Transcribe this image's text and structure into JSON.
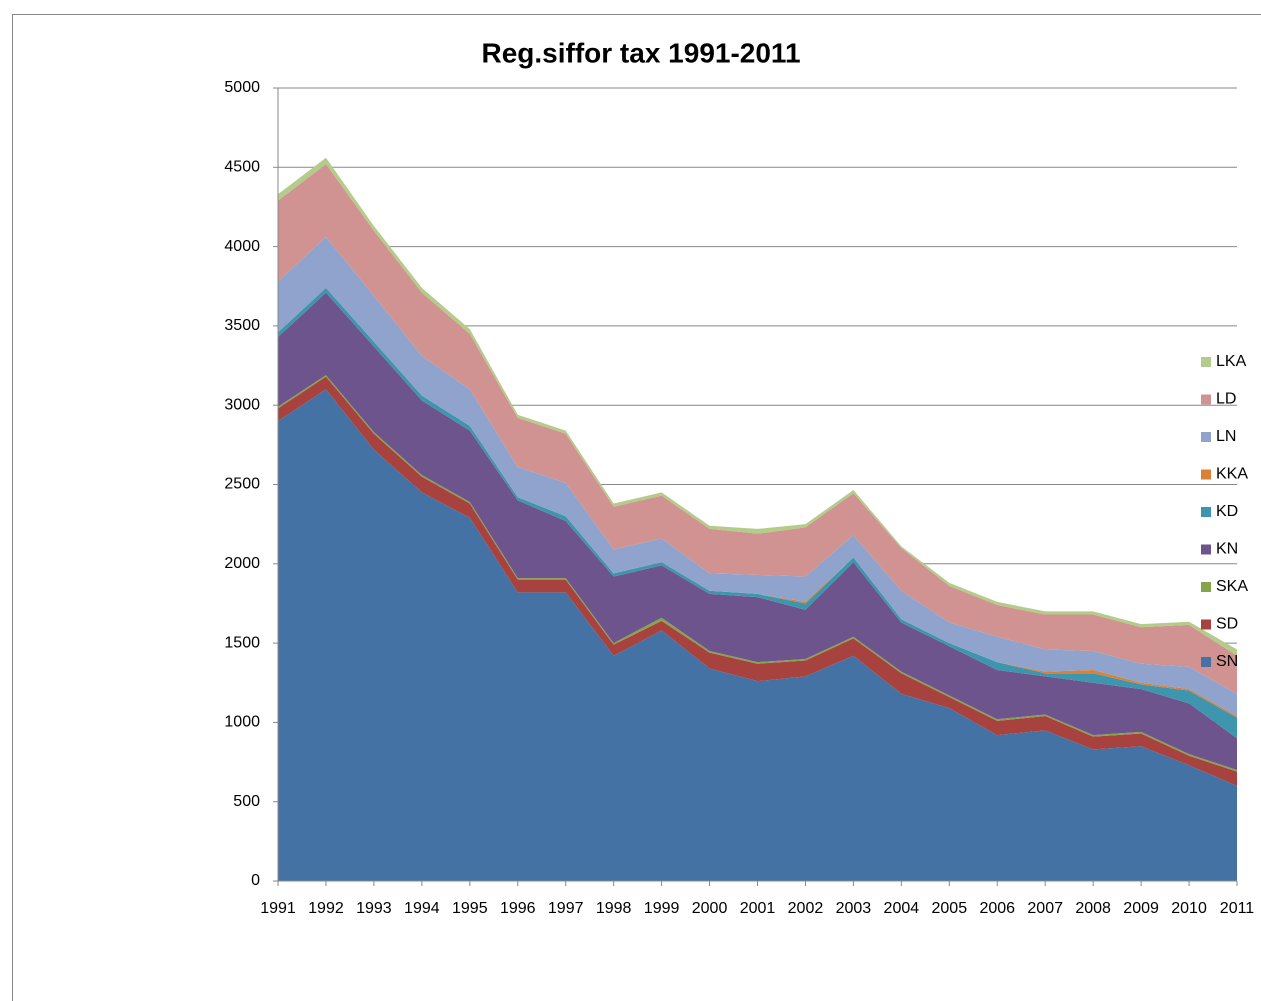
{
  "chart_data": {
    "type": "stacked_area",
    "title": "Reg.siffor tax 1991-2011",
    "categories": [
      "1991",
      "1992",
      "1993",
      "1994",
      "1995",
      "1996",
      "1997",
      "1998",
      "1999",
      "2000",
      "2001",
      "2002",
      "2003",
      "2004",
      "2005",
      "2006",
      "2007",
      "2008",
      "2009",
      "2010",
      "2011"
    ],
    "series": [
      {
        "name": "SN",
        "color": "#4472a4",
        "values": [
          2900,
          3100,
          2720,
          2450,
          2290,
          1820,
          1820,
          1420,
          1580,
          1340,
          1260,
          1290,
          1420,
          1180,
          1090,
          920,
          950,
          830,
          850,
          730,
          600
        ]
      },
      {
        "name": "SD",
        "color": "#a8423f",
        "values": [
          80,
          80,
          100,
          100,
          90,
          80,
          80,
          70,
          60,
          100,
          110,
          100,
          110,
          130,
          70,
          90,
          90,
          80,
          80,
          60,
          90
        ]
      },
      {
        "name": "SKA",
        "color": "#86a44a",
        "values": [
          10,
          10,
          10,
          10,
          10,
          10,
          10,
          10,
          20,
          10,
          10,
          10,
          10,
          10,
          10,
          10,
          10,
          10,
          10,
          10,
          10
        ]
      },
      {
        "name": "KN",
        "color": "#6e548d",
        "values": [
          440,
          520,
          540,
          470,
          450,
          490,
          360,
          420,
          330,
          360,
          410,
          310,
          470,
          310,
          310,
          310,
          240,
          330,
          270,
          320,
          200
        ]
      },
      {
        "name": "KD",
        "color": "#3d96ae",
        "values": [
          30,
          30,
          30,
          30,
          30,
          20,
          30,
          20,
          20,
          20,
          20,
          40,
          30,
          20,
          20,
          50,
          20,
          60,
          30,
          80,
          130
        ]
      },
      {
        "name": "KKA",
        "color": "#da8137",
        "values": [
          0,
          0,
          0,
          0,
          0,
          0,
          0,
          0,
          0,
          0,
          0,
          10,
          0,
          0,
          0,
          0,
          10,
          20,
          10,
          10,
          10
        ]
      },
      {
        "name": "LN",
        "color": "#8fa3cc",
        "values": [
          320,
          320,
          290,
          250,
          230,
          190,
          210,
          150,
          150,
          110,
          120,
          160,
          140,
          180,
          130,
          160,
          140,
          120,
          120,
          140,
          140
        ]
      },
      {
        "name": "LD",
        "color": "#d09391",
        "values": [
          510,
          460,
          410,
          400,
          350,
          310,
          310,
          270,
          270,
          280,
          260,
          310,
          265,
          270,
          230,
          200,
          220,
          230,
          230,
          265,
          240
        ]
      },
      {
        "name": "LKA",
        "color": "#b3cc8a",
        "values": [
          40,
          40,
          30,
          30,
          30,
          20,
          20,
          20,
          20,
          20,
          30,
          20,
          20,
          10,
          20,
          20,
          20,
          20,
          20,
          20,
          40
        ]
      }
    ],
    "ylim": [
      0,
      5000
    ],
    "yticks": [
      0,
      500,
      1000,
      1500,
      2000,
      2500,
      3000,
      3500,
      4000,
      4500,
      5000
    ],
    "grid": true
  }
}
